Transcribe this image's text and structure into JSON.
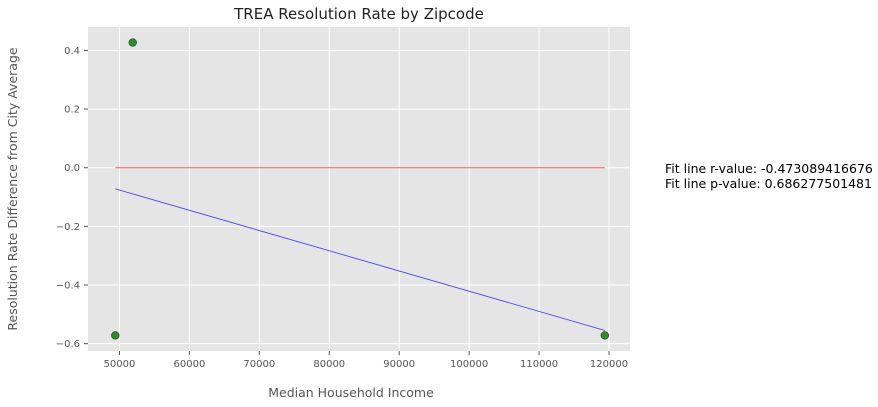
{
  "chart_data": {
    "type": "scatter",
    "title": "TREA Resolution Rate by Zipcode",
    "xlabel": "Median Household Income",
    "ylabel": "Resolution Rate Difference from City Average",
    "xlim": [
      45500,
      123000
    ],
    "ylim": [
      -0.625,
      0.48
    ],
    "xticks": [
      50000,
      60000,
      70000,
      80000,
      90000,
      100000,
      110000,
      120000
    ],
    "yticks": [
      -0.6,
      -0.4,
      -0.2,
      0.0,
      0.2,
      0.4
    ],
    "grid": true,
    "points": [
      {
        "x": 49400,
        "y": -0.572
      },
      {
        "x": 51900,
        "y": 0.427
      },
      {
        "x": 119400,
        "y": -0.572
      }
    ],
    "reference_line": {
      "x": [
        49400,
        119400
      ],
      "y": [
        0.0,
        0.0
      ]
    },
    "fit_line": {
      "x": [
        49400,
        119400
      ],
      "y": [
        -0.072,
        -0.555
      ]
    },
    "annotations": [
      "Fit line r-value: -0.473089416676",
      "Fit line p-value: 0.686277501481"
    ],
    "colors": {
      "plot_background": "#e5e5e5",
      "grid": "#ffffff",
      "point_fill": "#2e8b2e",
      "point_edge": "#1f5f1f",
      "reference_line": "#e8615f",
      "fit_line": "#4b4bff"
    }
  }
}
